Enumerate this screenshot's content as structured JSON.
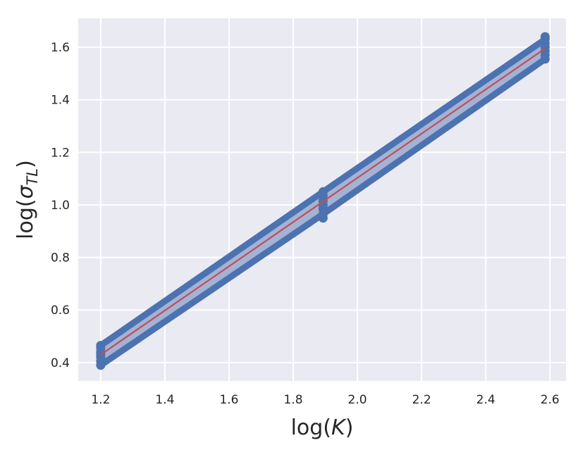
{
  "chart_data": {
    "type": "line",
    "title": "",
    "xlabel": "log(K)",
    "ylabel": "log(σ_TL)",
    "xlim": [
      1.13,
      2.65
    ],
    "ylim": [
      0.33,
      1.71
    ],
    "x_ticks": [
      1.2,
      1.4,
      1.6,
      1.8,
      2.0,
      2.2,
      2.4,
      2.6
    ],
    "x_tick_labels": [
      "1.2",
      "1.4",
      "1.6",
      "1.8",
      "2.0",
      "2.2",
      "2.4",
      "2.6"
    ],
    "y_ticks": [
      0.4,
      0.6,
      0.8,
      1.0,
      1.2,
      1.4,
      1.6
    ],
    "y_tick_labels": [
      "0.4",
      "0.6",
      "0.8",
      "1.0",
      "1.2",
      "1.4",
      "1.6"
    ],
    "grid": true,
    "colors": {
      "background": "#eaeaf2",
      "grid": "#ffffff",
      "points": "#4c72b0",
      "band": "#a3b3d6",
      "fit": "#c44e52"
    },
    "series": [
      {
        "x": [
          1.2,
          1.2,
          1.2,
          1.2,
          1.2,
          1.2,
          1.2
        ],
        "y": [
          0.39,
          0.405,
          0.42,
          0.43,
          0.44,
          0.455,
          0.465
        ]
      },
      {
        "x": [
          1.893,
          1.893,
          1.893,
          1.893,
          1.893,
          1.893,
          1.893
        ],
        "y": [
          0.95,
          0.965,
          0.985,
          1.0,
          1.015,
          1.035,
          1.05
        ]
      },
      {
        "x": [
          2.585,
          2.585,
          2.585,
          2.585,
          2.585,
          2.585,
          2.585
        ],
        "y": [
          1.555,
          1.57,
          1.585,
          1.6,
          1.615,
          1.63,
          1.64
        ]
      }
    ],
    "fit_line": {
      "x": [
        1.2,
        2.585
      ],
      "y": [
        0.43,
        1.595
      ]
    },
    "band": {
      "x": [
        1.2,
        1.893,
        2.585
      ],
      "upper": [
        0.465,
        1.05,
        1.63
      ],
      "lower": [
        0.39,
        0.965,
        1.555
      ]
    }
  }
}
